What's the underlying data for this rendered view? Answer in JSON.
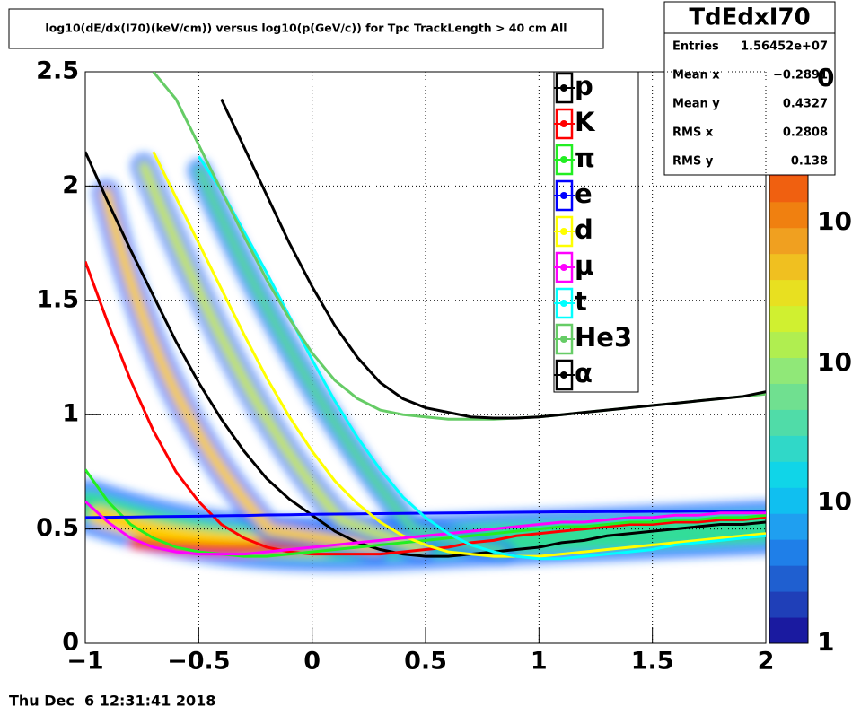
{
  "chart_data": {
    "type": "line",
    "title": "log10(dE/dx(I70)(keV/cm)) versus log10(p(GeV/c)) for Tpc TrackLength > 40 cm All",
    "x": [
      -1,
      -0.9,
      -0.8,
      -0.7,
      -0.6,
      -0.5,
      -0.4,
      -0.3,
      -0.2,
      -0.1,
      0,
      0.1,
      0.2,
      0.3,
      0.4,
      0.5,
      0.6,
      0.7,
      0.8,
      0.9,
      1,
      1.1,
      1.2,
      1.3,
      1.4,
      1.5,
      1.6,
      1.7,
      1.8,
      1.9,
      2
    ],
    "series": [
      {
        "name": "p",
        "color": "#000000",
        "values": [
          2.15,
          1.93,
          1.72,
          1.52,
          1.32,
          1.14,
          0.98,
          0.84,
          0.72,
          0.63,
          0.56,
          0.49,
          0.44,
          0.41,
          0.39,
          0.38,
          0.38,
          0.39,
          0.4,
          0.41,
          0.42,
          0.44,
          0.45,
          0.47,
          0.48,
          0.49,
          0.5,
          0.51,
          0.52,
          0.52,
          0.53
        ]
      },
      {
        "name": "K",
        "color": "#ff0000",
        "values": [
          1.67,
          1.4,
          1.15,
          0.93,
          0.75,
          0.62,
          0.52,
          0.46,
          0.42,
          0.4,
          0.39,
          0.39,
          0.39,
          0.39,
          0.4,
          0.41,
          0.42,
          0.44,
          0.45,
          0.47,
          0.48,
          0.49,
          0.5,
          0.51,
          0.52,
          0.52,
          0.53,
          0.53,
          0.54,
          0.54,
          0.55
        ]
      },
      {
        "name": "π",
        "color": "#22ee22",
        "values": [
          0.76,
          0.62,
          0.52,
          0.46,
          0.42,
          0.4,
          0.39,
          0.38,
          0.38,
          0.39,
          0.4,
          0.41,
          0.42,
          0.43,
          0.44,
          0.45,
          0.46,
          0.47,
          0.48,
          0.49,
          0.5,
          0.51,
          0.51,
          0.52,
          0.53,
          0.53,
          0.54,
          0.54,
          0.55,
          0.55,
          0.56
        ]
      },
      {
        "name": "e",
        "color": "#0000ff",
        "values": [
          0.55,
          0.551,
          0.552,
          0.554,
          0.555,
          0.556,
          0.558,
          0.559,
          0.561,
          0.562,
          0.564,
          0.565,
          0.566,
          0.567,
          0.568,
          0.569,
          0.57,
          0.571,
          0.572,
          0.573,
          0.574,
          0.575,
          0.575,
          0.576,
          0.576,
          0.577,
          0.577,
          0.578,
          0.578,
          0.579,
          0.579
        ]
      },
      {
        "name": "d",
        "color": "#ffff00",
        "values": [
          null,
          null,
          null,
          2.15,
          1.95,
          1.75,
          1.55,
          1.35,
          1.16,
          0.99,
          0.84,
          0.71,
          0.61,
          0.53,
          0.47,
          0.43,
          0.4,
          0.39,
          0.38,
          0.38,
          0.38,
          0.39,
          0.4,
          0.41,
          0.42,
          0.43,
          0.44,
          0.45,
          0.46,
          0.47,
          0.48
        ]
      },
      {
        "name": "μ",
        "color": "#ff00ff",
        "values": [
          0.62,
          0.53,
          0.46,
          0.42,
          0.4,
          0.39,
          0.39,
          0.39,
          0.4,
          0.41,
          0.42,
          0.43,
          0.44,
          0.45,
          0.46,
          0.47,
          0.48,
          0.49,
          0.5,
          0.51,
          0.52,
          0.53,
          0.53,
          0.54,
          0.55,
          0.55,
          0.56,
          0.56,
          0.57,
          0.57,
          0.57
        ]
      },
      {
        "name": "t",
        "color": "#00ffff",
        "values": [
          null,
          null,
          null,
          null,
          null,
          2.13,
          1.98,
          1.8,
          1.62,
          1.43,
          1.24,
          1.06,
          0.9,
          0.76,
          0.64,
          0.55,
          0.48,
          0.43,
          0.4,
          0.38,
          0.37,
          0.37,
          0.38,
          0.39,
          0.4,
          0.41,
          0.43,
          0.44,
          0.45,
          0.46,
          0.47
        ]
      },
      {
        "name": "He3",
        "color": "#66cc66",
        "values": [
          null,
          null,
          null,
          2.5,
          2.38,
          2.18,
          1.98,
          1.78,
          1.59,
          1.42,
          1.27,
          1.15,
          1.07,
          1.02,
          1.0,
          0.99,
          0.98,
          0.98,
          0.98,
          0.985,
          0.99,
          1.0,
          1.01,
          1.02,
          1.03,
          1.04,
          1.05,
          1.06,
          1.07,
          1.08,
          1.09
        ]
      },
      {
        "name": "α",
        "color": "#000000",
        "values": [
          null,
          null,
          null,
          null,
          null,
          null,
          2.38,
          2.17,
          1.96,
          1.75,
          1.56,
          1.39,
          1.25,
          1.14,
          1.07,
          1.03,
          1.01,
          0.99,
          0.985,
          0.985,
          0.99,
          1.0,
          1.01,
          1.02,
          1.03,
          1.04,
          1.05,
          1.06,
          1.07,
          1.08,
          1.1
        ]
      }
    ],
    "xlim": [
      -1,
      2
    ],
    "ylim": [
      0,
      2.5
    ],
    "xticks": [
      {
        "value": -1,
        "label": "−1"
      },
      {
        "value": -0.5,
        "label": "−0.5"
      },
      0,
      0.5,
      1,
      1.5,
      2
    ],
    "yticks": [
      0,
      0.5,
      1,
      1.5,
      2,
      2.5
    ],
    "grid": true,
    "stats": {
      "name": "TdEdxI70",
      "rows": [
        [
          "Entries",
          "1.56452e+07"
        ],
        [
          "Mean x",
          "−0.2891"
        ],
        [
          "Mean y",
          "0.4327"
        ],
        [
          "RMS x",
          "0.2808"
        ],
        [
          "RMS y",
          "0.138"
        ]
      ]
    },
    "colorbar_labels": [
      "1",
      "10",
      "10",
      "10",
      "0"
    ]
  },
  "footer": "Thu Dec  6 12:31:41 2018"
}
